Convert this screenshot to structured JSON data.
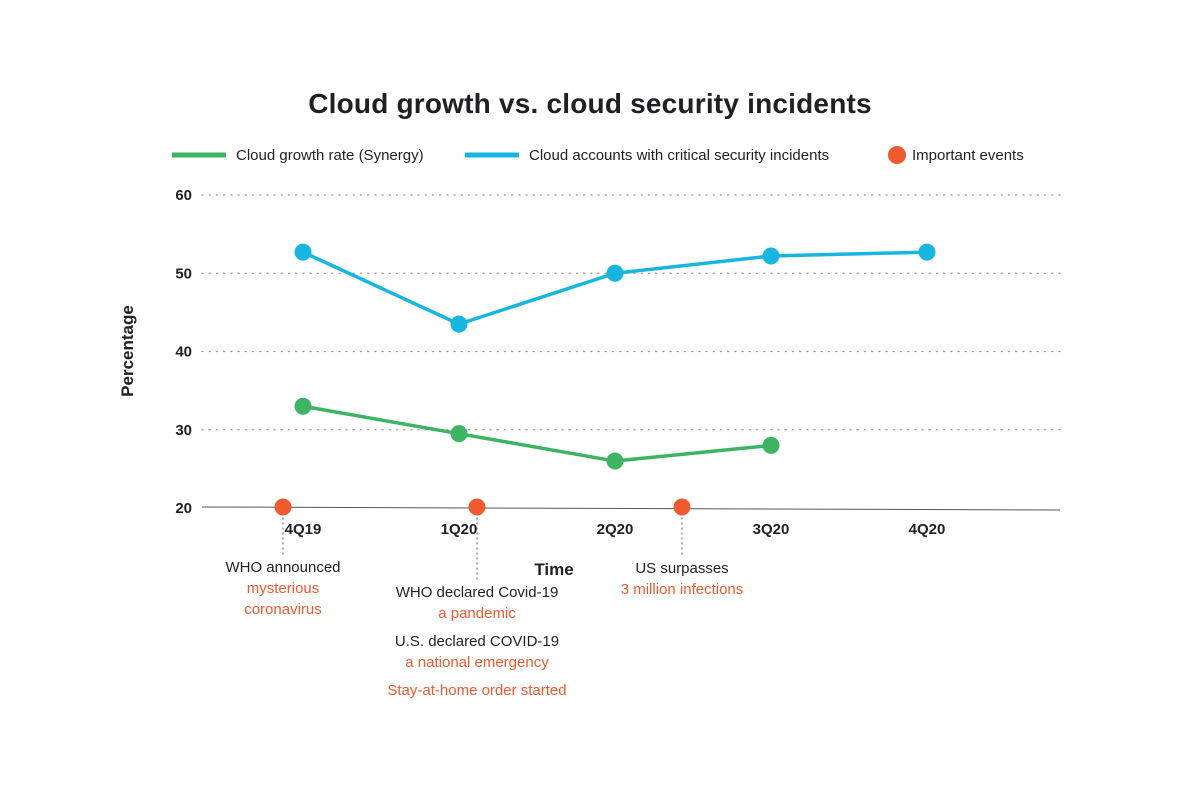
{
  "chart_data": {
    "type": "line",
    "title": "Cloud growth vs. cloud security incidents",
    "xlabel": "Time",
    "ylabel": "Percentage",
    "categories": [
      "4Q19",
      "1Q20",
      "2Q20",
      "3Q20",
      "4Q20"
    ],
    "yticks": [
      20,
      30,
      40,
      50,
      60
    ],
    "ylim": [
      20,
      60
    ],
    "series": [
      {
        "name": "Cloud growth rate (Synergy)",
        "color": "#3cb462",
        "values": [
          33,
          29.5,
          26,
          28,
          null
        ]
      },
      {
        "name": "Cloud accounts with critical security incidents",
        "color": "#16b6e0",
        "values": [
          52.7,
          43.5,
          50,
          52.2,
          52.7
        ]
      }
    ],
    "events_legend": {
      "name": "Important events",
      "color": "#f05a2e"
    },
    "events": [
      {
        "x": 0,
        "lines": [
          {
            "text": "WHO announced",
            "accent": false
          },
          {
            "text": "mysterious",
            "accent": true
          },
          {
            "text": "coronavirus",
            "accent": true
          }
        ]
      },
      {
        "x": 1.07,
        "lines": [
          {
            "text": "WHO declared Covid-19",
            "accent": false
          },
          {
            "text": "a pandemic",
            "accent": true
          },
          {
            "text": "U.S. declared COVID-19",
            "accent": false
          },
          {
            "text": "a national emergency",
            "accent": true
          },
          {
            "text": "Stay-at-home order started",
            "accent": true
          }
        ]
      },
      {
        "x": 2.35,
        "lines": [
          {
            "text": "US surpasses",
            "accent": false
          },
          {
            "text": "3 million infections",
            "accent": true
          }
        ]
      }
    ],
    "grid": "dotted-horizontal",
    "legend_position": "top"
  }
}
